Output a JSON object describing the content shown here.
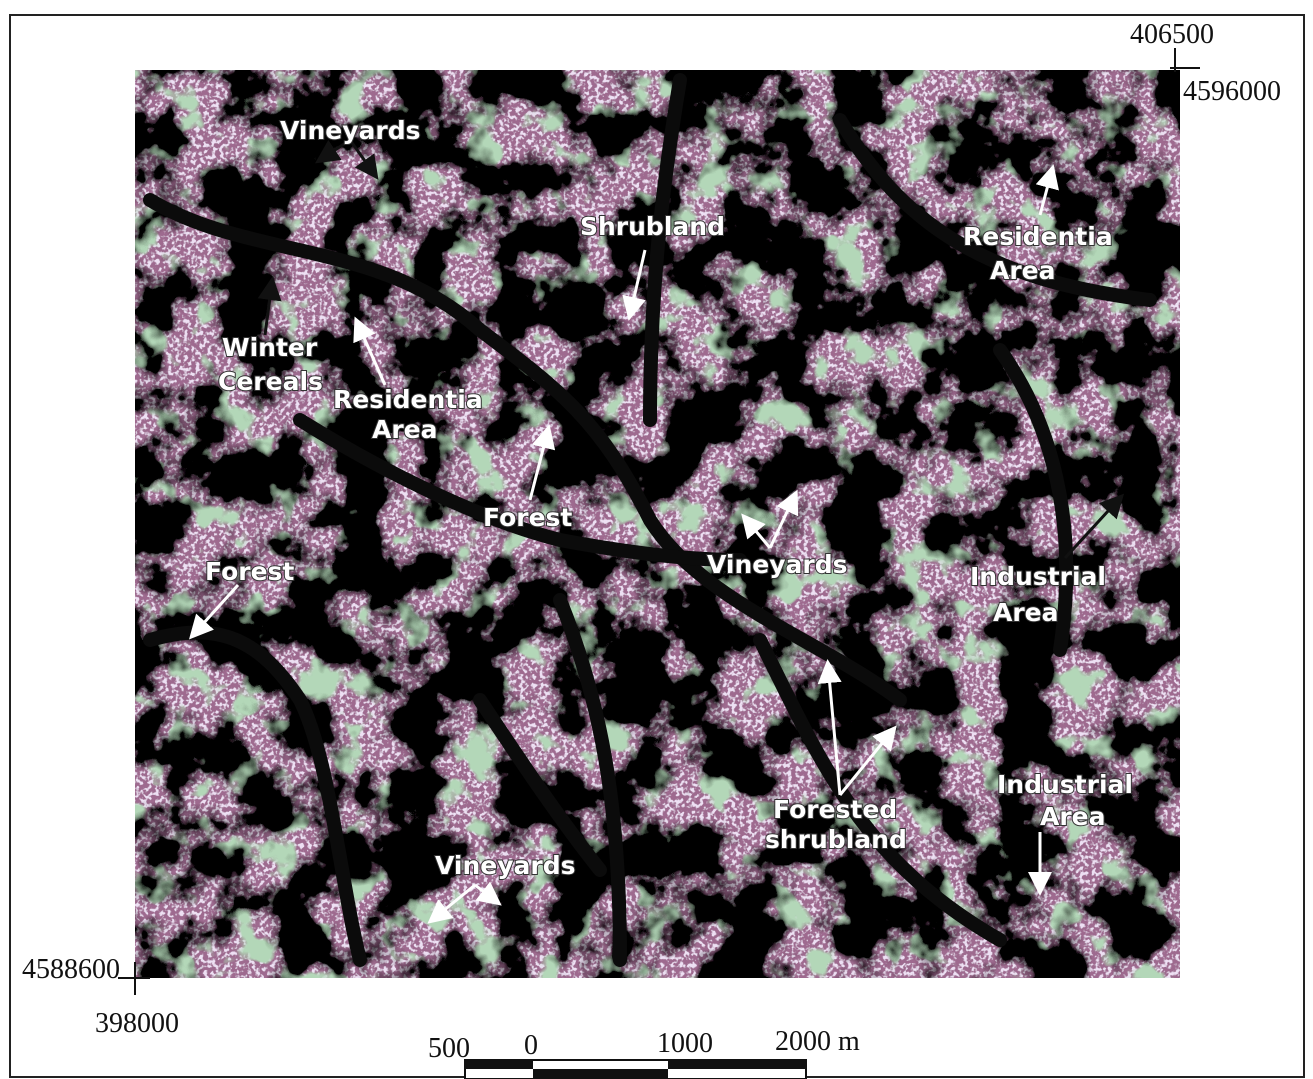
{
  "coordinates": {
    "top_right_x": "406500",
    "top_right_y": "4596000",
    "bottom_left_y": "4588600",
    "bottom_left_x": "398000"
  },
  "scale_bar": {
    "labels": [
      "500",
      "0",
      "1000",
      "2000 m"
    ]
  },
  "annotations": [
    {
      "lines": [
        "Vineyards"
      ]
    },
    {
      "lines": [
        "Shrubland"
      ]
    },
    {
      "lines": [
        "Residentia",
        "Area"
      ]
    },
    {
      "lines": [
        "Winter",
        "Cereals"
      ]
    },
    {
      "lines": [
        "Residentia",
        "Area"
      ]
    },
    {
      "lines": [
        "Forest"
      ]
    },
    {
      "lines": [
        "Forest"
      ]
    },
    {
      "lines": [
        "Vineyards"
      ]
    },
    {
      "lines": [
        "Industrial",
        "Area"
      ]
    },
    {
      "lines": [
        "Industrial",
        "Area"
      ]
    },
    {
      "lines": [
        "Forested",
        "shrubland"
      ]
    },
    {
      "lines": [
        "Vineyards"
      ]
    }
  ]
}
